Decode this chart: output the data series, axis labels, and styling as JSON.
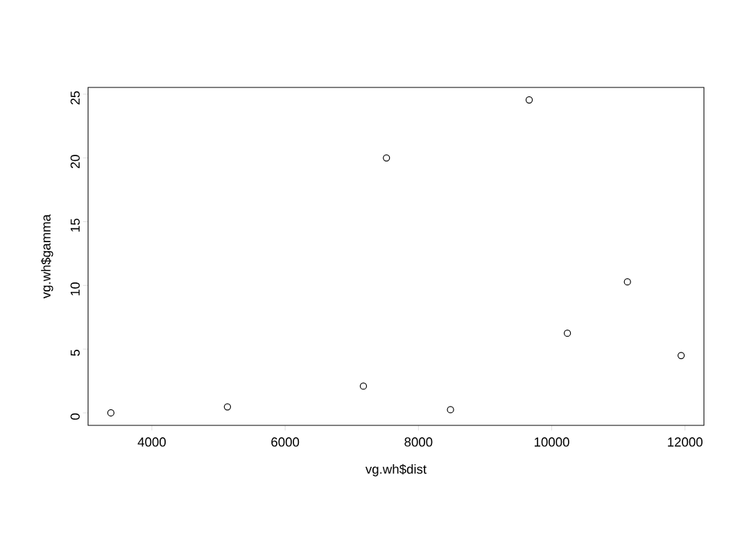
{
  "chart_data": {
    "type": "scatter",
    "xlabel": "vg.wh$dist",
    "ylabel": "vg.wh$gamma",
    "x": [
      3385,
      5134,
      7174,
      7520,
      8481,
      9662,
      10235,
      11136,
      11942
    ],
    "values": [
      0,
      0.47,
      2.1,
      20.0,
      0.25,
      24.55,
      6.25,
      10.28,
      4.5
    ],
    "color": "#000000",
    "marker": "circle",
    "xlim": [
      3043,
      12284
    ],
    "ylim": [
      -0.98,
      25.53
    ],
    "xticks": [
      4000,
      6000,
      8000,
      10000,
      12000
    ],
    "yticks": [
      0,
      5,
      10,
      15,
      20,
      25
    ],
    "grid": false
  }
}
